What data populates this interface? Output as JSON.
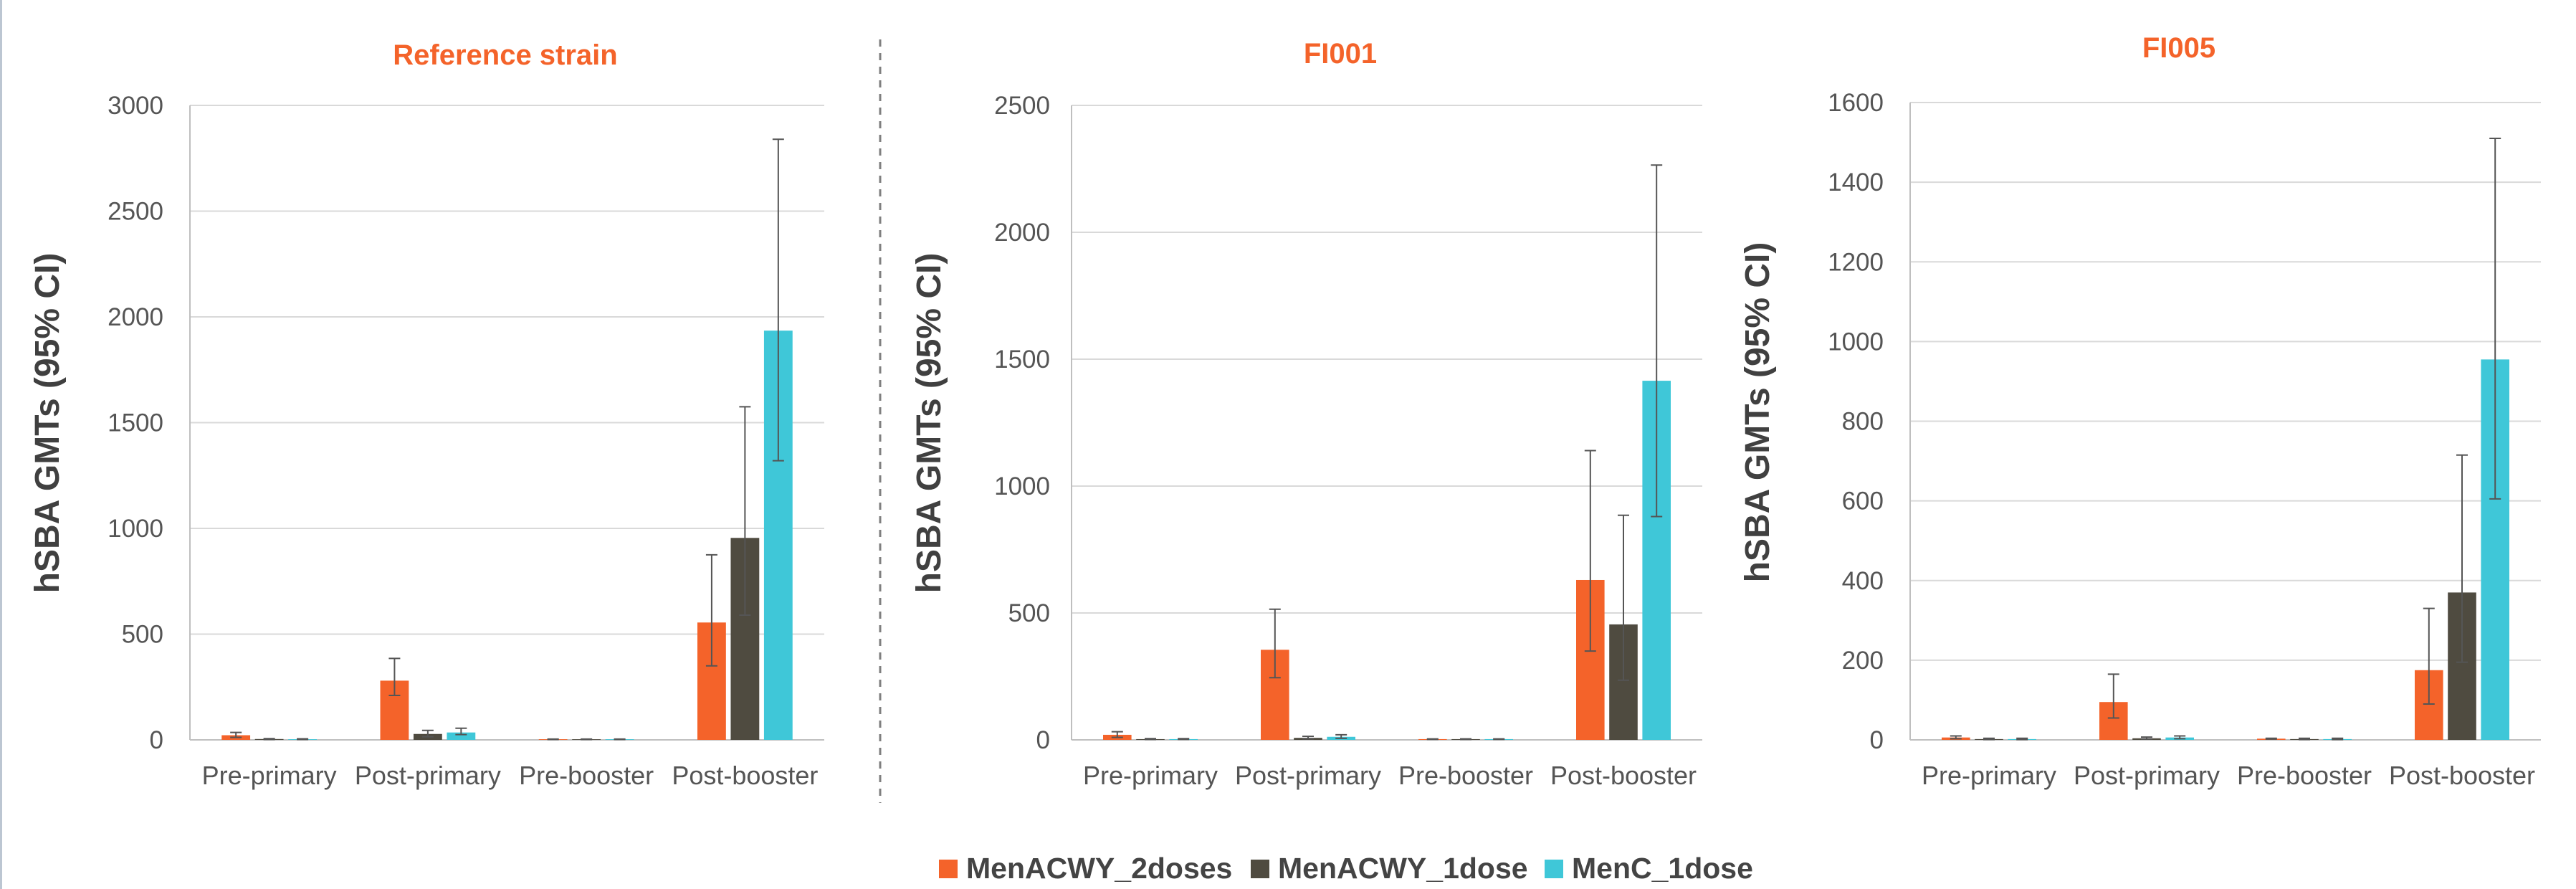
{
  "legend": [
    {
      "name": "MenACWY_2doses",
      "color": "#f4632a"
    },
    {
      "name": "MenACWY_1dose",
      "color": "#4f4b40"
    },
    {
      "name": "MenC_1dose",
      "color": "#3fc7d8"
    }
  ],
  "colors": {
    "title": "#f4632a",
    "axis_text": "#555555",
    "ylabel": "#404040",
    "grid": "#d9d9d9",
    "errorbar": "#555555",
    "divider": "#7f7f7f"
  },
  "chart_data": [
    {
      "type": "bar",
      "title": "Reference strain",
      "ylabel": "hSBA GMTs (95% CI)",
      "xlabel": "",
      "categories": [
        "Pre-primary",
        "Post-primary",
        "Pre-booster",
        "Post-booster"
      ],
      "ylim": [
        0,
        3000
      ],
      "yticks": [
        0,
        500,
        1000,
        1500,
        2000,
        2500,
        3000
      ],
      "series": [
        {
          "name": "MenACWY_2doses",
          "values": [
            22,
            280,
            3,
            555
          ],
          "ci_low": [
            12,
            210,
            2,
            350
          ],
          "ci_high": [
            35,
            385,
            4,
            875
          ]
        },
        {
          "name": "MenACWY_1dose",
          "values": [
            4,
            28,
            3,
            955
          ],
          "ci_low": [
            2,
            15,
            2,
            590
          ],
          "ci_high": [
            6,
            45,
            4,
            1575
          ]
        },
        {
          "name": "MenC_1dose",
          "values": [
            3,
            35,
            3,
            1935
          ],
          "ci_low": [
            2,
            25,
            2,
            1320
          ],
          "ci_high": [
            5,
            55,
            4,
            2840
          ]
        }
      ]
    },
    {
      "type": "bar",
      "title": "FI001",
      "ylabel": "hSBA GMTs (95% CI)",
      "xlabel": "",
      "categories": [
        "Pre-primary",
        "Post-primary",
        "Pre-booster",
        "Post-booster"
      ],
      "ylim": [
        0,
        2500
      ],
      "yticks": [
        0,
        500,
        1000,
        1500,
        2000,
        2500
      ],
      "series": [
        {
          "name": "MenACWY_2doses",
          "values": [
            20,
            355,
            3,
            630
          ],
          "ci_low": [
            10,
            245,
            2,
            350
          ],
          "ci_high": [
            32,
            515,
            4,
            1140
          ]
        },
        {
          "name": "MenACWY_1dose",
          "values": [
            3,
            8,
            3,
            455
          ],
          "ci_low": [
            2,
            4,
            2,
            235
          ],
          "ci_high": [
            5,
            14,
            4,
            885
          ]
        },
        {
          "name": "MenC_1dose",
          "values": [
            3,
            12,
            3,
            1415
          ],
          "ci_low": [
            2,
            6,
            2,
            880
          ],
          "ci_high": [
            5,
            20,
            4,
            2265
          ]
        }
      ]
    },
    {
      "type": "bar",
      "title": "FI005",
      "ylabel": "hSBA GMTs (95% CI)",
      "xlabel": "",
      "categories": [
        "Pre-primary",
        "Post-primary",
        "Pre-booster",
        "Post-booster"
      ],
      "ylim": [
        0,
        1600
      ],
      "yticks": [
        0,
        200,
        400,
        600,
        800,
        1000,
        1200,
        1400,
        1600
      ],
      "series": [
        {
          "name": "MenACWY_2doses",
          "values": [
            6,
            95,
            3,
            175
          ],
          "ci_low": [
            3,
            55,
            2,
            90
          ],
          "ci_high": [
            10,
            165,
            4,
            330
          ]
        },
        {
          "name": "MenACWY_1dose",
          "values": [
            2,
            4,
            2,
            370
          ],
          "ci_low": [
            1,
            2,
            1,
            195
          ],
          "ci_high": [
            4,
            7,
            4,
            715
          ]
        },
        {
          "name": "MenC_1dose",
          "values": [
            2,
            6,
            2,
            955
          ],
          "ci_low": [
            1,
            3,
            1,
            605
          ],
          "ci_high": [
            4,
            10,
            4,
            1510
          ]
        }
      ]
    }
  ]
}
